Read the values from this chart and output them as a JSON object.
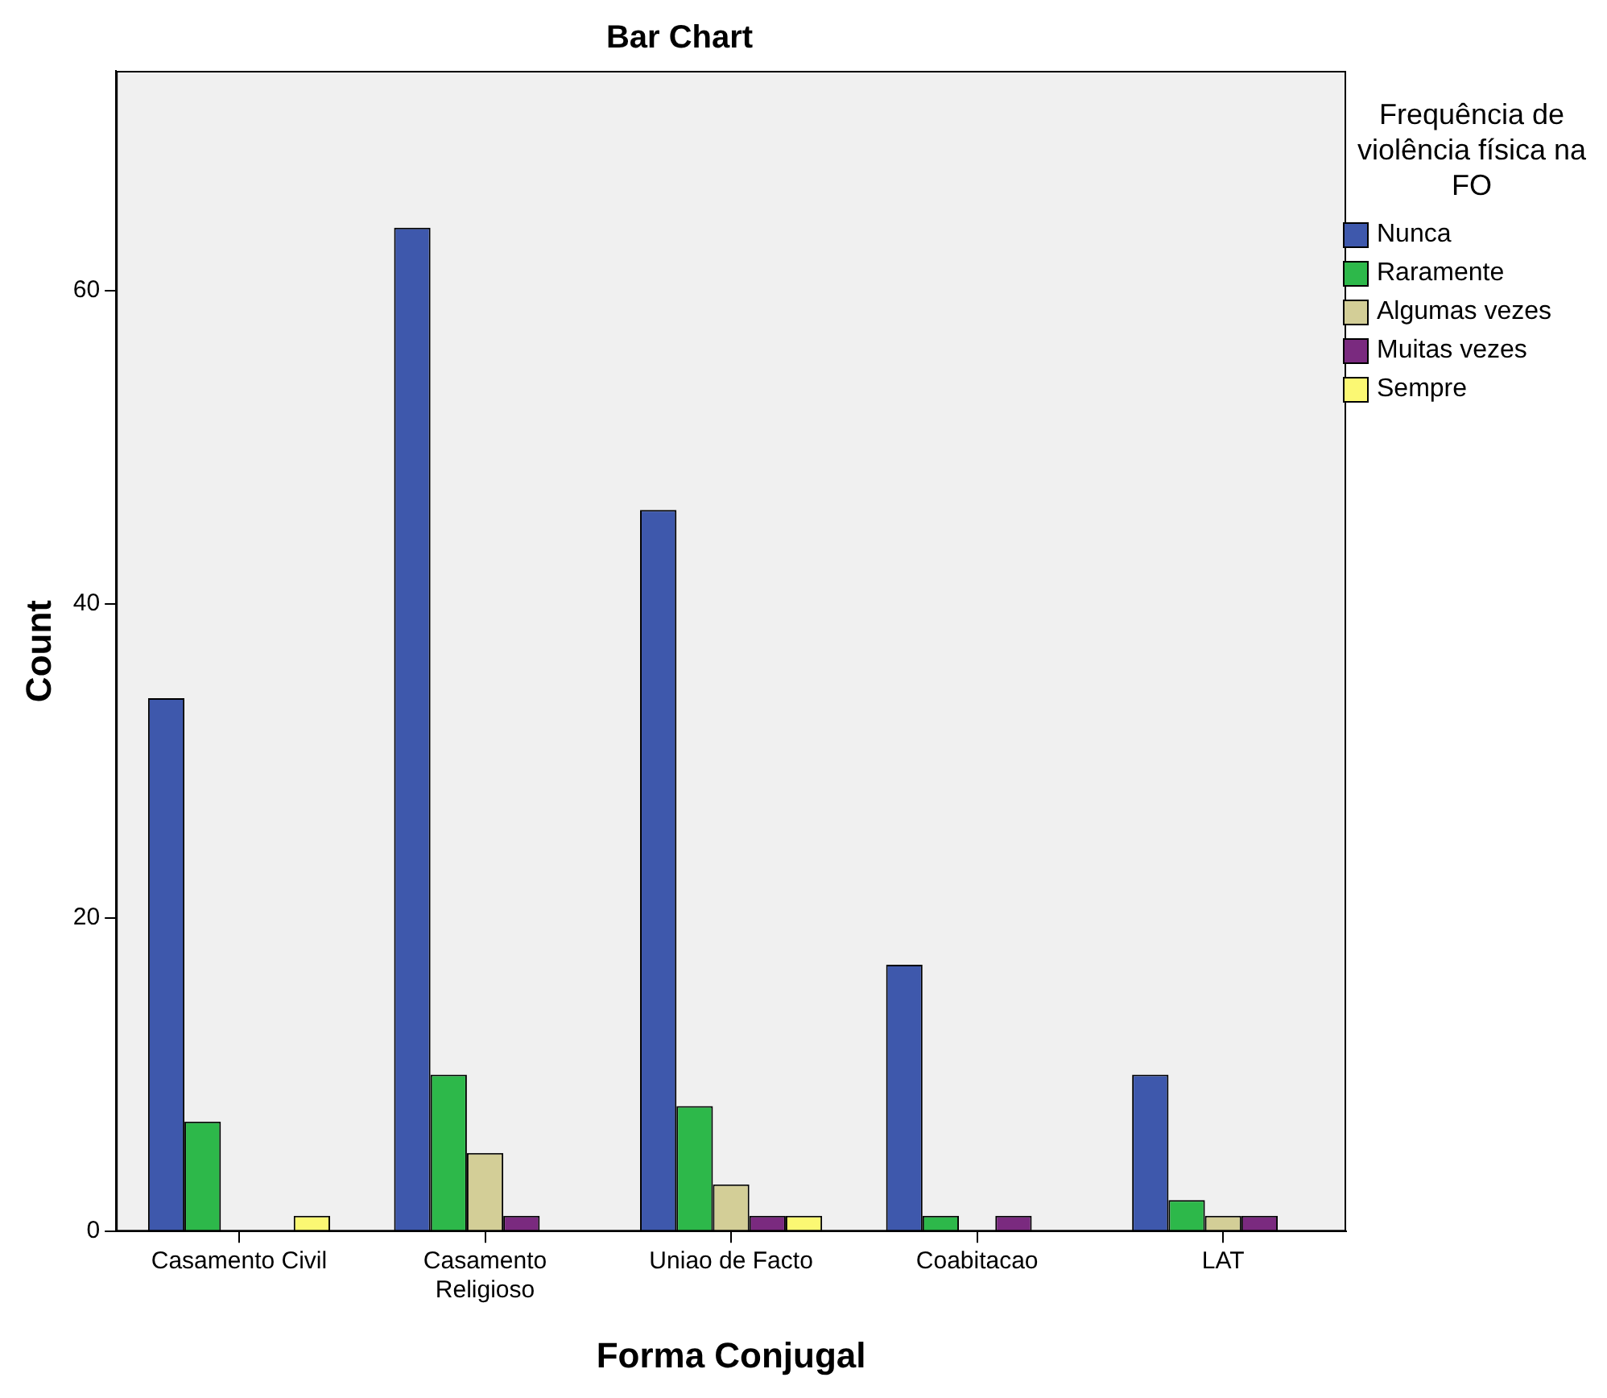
{
  "chart_data": {
    "type": "bar",
    "title": "Bar Chart",
    "xlabel": "Forma Conjugal",
    "ylabel": "Count",
    "legend_title": "Frequência de violência física na FO",
    "categories": [
      "Casamento Civil",
      "Casamento Religioso",
      "Uniao de Facto",
      "Coabitacao",
      "LAT"
    ],
    "series": [
      {
        "name": "Nunca",
        "color": "#3e58ac",
        "values": [
          34,
          64,
          46,
          17,
          10
        ]
      },
      {
        "name": "Raramente",
        "color": "#2db84a",
        "values": [
          7,
          10,
          8,
          1,
          2
        ]
      },
      {
        "name": "Algumas vezes",
        "color": "#d3ce97",
        "values": [
          null,
          5,
          3,
          null,
          1
        ]
      },
      {
        "name": "Muitas vezes",
        "color": "#7a2a7f",
        "values": [
          null,
          1,
          1,
          1,
          1
        ]
      },
      {
        "name": "Sempre",
        "color": "#fbf873",
        "values": [
          1,
          null,
          1,
          null,
          null
        ]
      }
    ],
    "ylim": [
      0,
      74
    ],
    "yticks": [
      0,
      20,
      40,
      60
    ],
    "grid": false,
    "legend": "right"
  }
}
